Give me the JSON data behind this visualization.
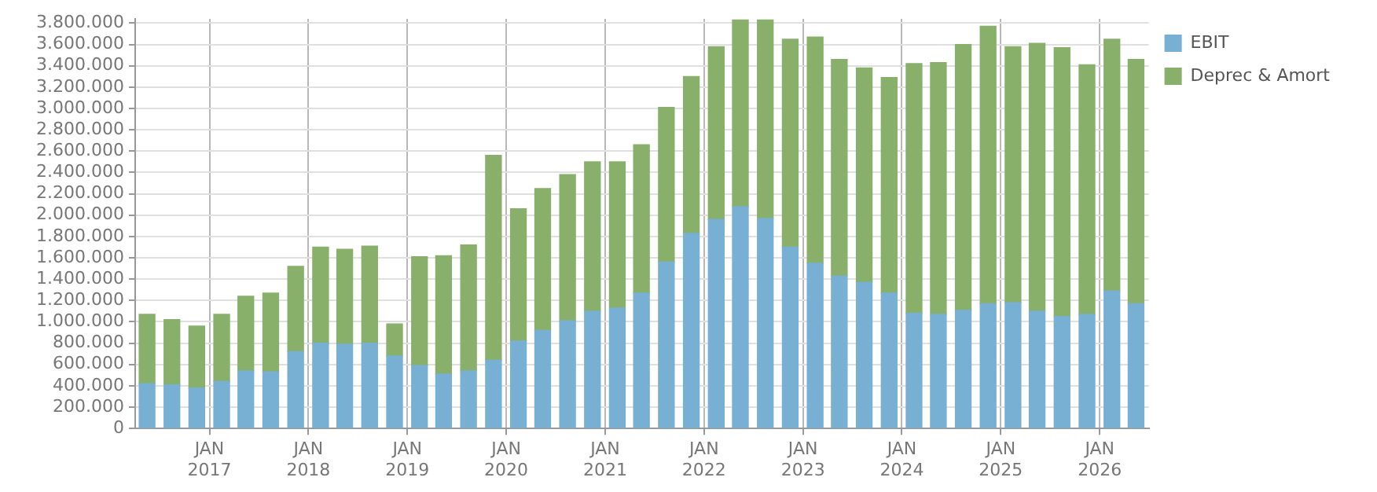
{
  "chart_data": {
    "type": "bar",
    "stacked": true,
    "grid": true,
    "legend": "top right",
    "x": [
      "2016-05-15",
      "2016-08-15",
      "2016-11-15",
      "2017-02-15",
      "2017-05-15",
      "2017-08-15",
      "2017-11-15",
      "2018-02-15",
      "2018-05-15",
      "2018-08-15",
      "2018-11-15",
      "2019-02-15",
      "2019-05-15",
      "2019-08-15",
      "2019-11-15",
      "2020-02-15",
      "2020-05-15",
      "2020-08-15",
      "2020-11-15",
      "2021-02-15",
      "2021-05-15",
      "2021-08-15",
      "2021-11-15",
      "2022-02-15",
      "2022-05-15",
      "2022-08-15",
      "2022-11-15",
      "2023-02-15",
      "2023-05-15",
      "2023-08-15",
      "2023-11-15",
      "2024-02-15",
      "2024-05-15",
      "2024-08-15",
      "2024-11-15",
      "2025-02-15",
      "2025-05-15",
      "2025-08-15",
      "2025-11-15",
      "2026-02-15",
      "2026-05-15"
    ],
    "series": [
      {
        "name": "EBIT",
        "color": "#77b0d3",
        "values": [
          420000,
          410000,
          380000,
          440000,
          540000,
          530000,
          720000,
          800000,
          790000,
          800000,
          680000,
          590000,
          510000,
          540000,
          640000,
          820000,
          920000,
          1010000,
          1100000,
          1130000,
          1270000,
          1560000,
          1830000,
          1960000,
          2080000,
          1970000,
          1700000,
          1550000,
          1430000,
          1370000,
          1270000,
          1080000,
          1070000,
          1110000,
          1170000,
          1180000,
          1100000,
          1050000,
          1070000,
          1290000,
          1170000
        ]
      },
      {
        "name": "Deprec & Amort",
        "color": "#88b06a",
        "values": [
          650000,
          610000,
          580000,
          630000,
          700000,
          740000,
          800000,
          900000,
          890000,
          910000,
          300000,
          1020000,
          1110000,
          1180000,
          1920000,
          1240000,
          1330000,
          1370000,
          1400000,
          1370000,
          1390000,
          1450000,
          1470000,
          1620000,
          1750000,
          1860000,
          1950000,
          2120000,
          2030000,
          2010000,
          2020000,
          2340000,
          2360000,
          2490000,
          2600000,
          2400000,
          2510000,
          2520000,
          2340000,
          2360000,
          2290000
        ]
      }
    ],
    "xlim": [
      "2016-04-01",
      "2026-07-01"
    ],
    "xticks": [
      {
        "value": "2017-01-01",
        "label": "JAN 2017"
      },
      {
        "value": "2018-01-01",
        "label": "JAN 2018"
      },
      {
        "value": "2019-01-01",
        "label": "JAN 2019"
      },
      {
        "value": "2020-01-01",
        "label": "JAN 2020"
      },
      {
        "value": "2021-01-01",
        "label": "JAN 2021"
      },
      {
        "value": "2022-01-01",
        "label": "JAN 2022"
      },
      {
        "value": "2023-01-01",
        "label": "JAN 2023"
      },
      {
        "value": "2024-01-01",
        "label": "JAN 2024"
      },
      {
        "value": "2025-01-01",
        "label": "JAN 2025"
      },
      {
        "value": "2026-01-01",
        "label": "JAN 2026"
      }
    ],
    "ylim": [
      0,
      3840000
    ],
    "yticks": [
      {
        "value": 0,
        "label": "0"
      },
      {
        "value": 200000,
        "label": "200.000"
      },
      {
        "value": 400000,
        "label": "400.000"
      },
      {
        "value": 600000,
        "label": "600.000"
      },
      {
        "value": 800000,
        "label": "800.000"
      },
      {
        "value": 1000000,
        "label": "1.000.000"
      },
      {
        "value": 1200000,
        "label": "1.200.000"
      },
      {
        "value": 1400000,
        "label": "1.400.000"
      },
      {
        "value": 1600000,
        "label": "1.600.000"
      },
      {
        "value": 1800000,
        "label": "1.800.000"
      },
      {
        "value": 2000000,
        "label": "2.000.000"
      },
      {
        "value": 2200000,
        "label": "2.200.000"
      },
      {
        "value": 2400000,
        "label": "2.400.000"
      },
      {
        "value": 2600000,
        "label": "2.600.000"
      },
      {
        "value": 2800000,
        "label": "2.800.000"
      },
      {
        "value": 3000000,
        "label": "3.000.000"
      },
      {
        "value": 3200000,
        "label": "3.200.000"
      },
      {
        "value": 3400000,
        "label": "3.400.000"
      },
      {
        "value": 3600000,
        "label": "3.600.000"
      },
      {
        "value": 3800000,
        "label": "3.800.000"
      }
    ]
  }
}
